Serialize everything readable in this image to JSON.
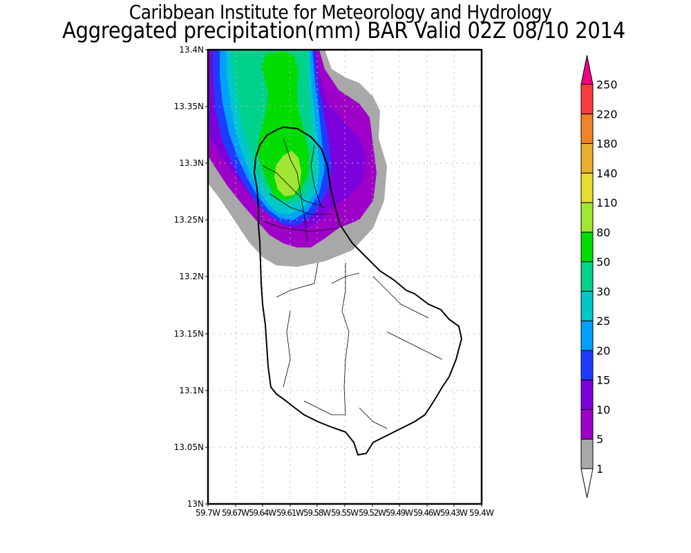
{
  "header": {
    "institute": "Caribbean Institute for Meteorology and Hydrology",
    "product": "Aggregated precipitation(mm) BAR Valid 02Z 08/10 2014"
  },
  "map": {
    "region": "Barbados",
    "lat_ticks": [
      "13.4N",
      "13.35N",
      "13.3N",
      "13.25N",
      "13.2N",
      "13.15N",
      "13.1N",
      "13.05N",
      "13N"
    ],
    "lon_ticks": [
      "59.7W",
      "59.67W",
      "59.64W",
      "59.61W",
      "59.58W",
      "59.55W",
      "59.52W",
      "59.49W",
      "59.46W",
      "59.43W",
      "59.4W"
    ],
    "lat_range": [
      13.0,
      13.4
    ],
    "lon_range": [
      -59.7,
      -59.4
    ],
    "grid": true
  },
  "colorbar": {
    "unit": "mm",
    "levels": [
      "1",
      "5",
      "10",
      "15",
      "20",
      "25",
      "30",
      "50",
      "80",
      "110",
      "140",
      "180",
      "220",
      "250"
    ],
    "colors": [
      "#a8a8a8",
      "#9f00c8",
      "#7c00dc",
      "#1e3cff",
      "#00a0ff",
      "#00c8c8",
      "#00d28c",
      "#00dc00",
      "#a0e632",
      "#e6dc32",
      "#e6af2d",
      "#f08228",
      "#fa3c3c",
      "#f00082"
    ]
  },
  "chart_data": {
    "type": "heatmap",
    "title": "Aggregated precipitation(mm) BAR Valid 02Z 08/10 2014",
    "subtitle": "Caribbean Institute for Meteorology and Hydrology",
    "xlabel": "",
    "ylabel": "",
    "xlim": [
      -59.7,
      -59.4
    ],
    "ylim": [
      13.0,
      13.4
    ],
    "legend": "right",
    "contour_levels_mm": [
      1,
      5,
      10,
      15,
      20,
      25,
      30,
      50,
      80,
      110,
      140,
      180,
      220,
      250
    ],
    "max_region": {
      "lat": 13.29,
      "lon": -59.61,
      "band_mm": "80-110"
    }
  }
}
